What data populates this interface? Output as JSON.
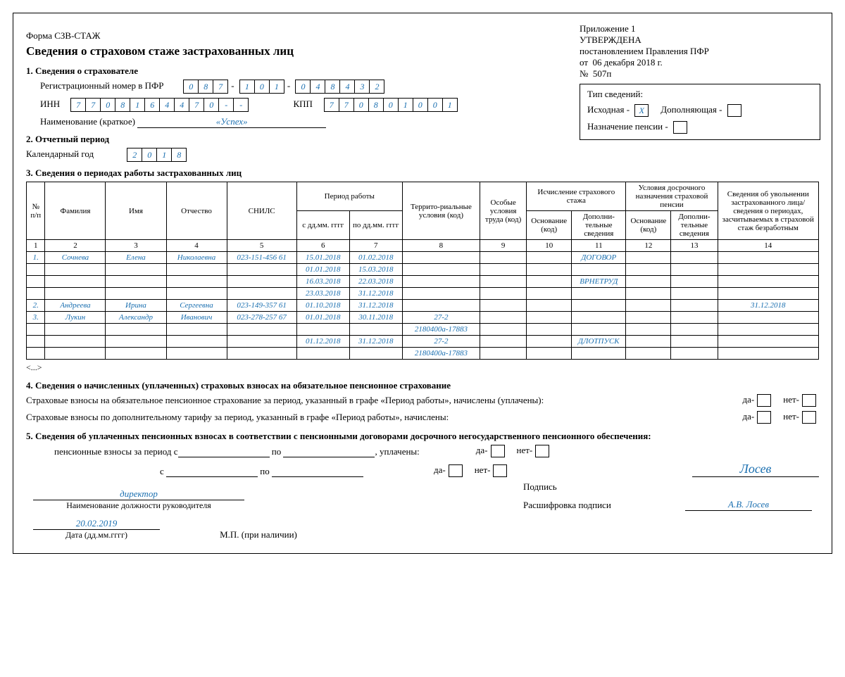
{
  "header": {
    "appendix": "Приложение 1",
    "approved": "УТВЕРЖДЕНА",
    "by": "постановлением Правления ПФР",
    "from_lbl": "от",
    "from_val": "06 декабря 2018 г.",
    "num_lbl": "№",
    "num_val": "507п",
    "form": "Форма СЗВ-СТАЖ",
    "title": "Сведения о страховом стаже застрахованных лиц"
  },
  "types": {
    "title": "Тип сведений:",
    "orig_lbl": "Исходная -",
    "orig_val": "X",
    "supp_lbl": "Дополняющая -",
    "supp_val": "",
    "pension_lbl": "Назначение пенсии -",
    "pension_val": ""
  },
  "s1": {
    "title": "1. Сведения о страхователе",
    "reg_lbl": "Регистрационный номер в ПФР",
    "reg1": [
      "0",
      "8",
      "7"
    ],
    "reg2": [
      "1",
      "0",
      "1"
    ],
    "reg3": [
      "0",
      "4",
      "8",
      "4",
      "3",
      "2"
    ],
    "inn_lbl": "ИНН",
    "inn": [
      "7",
      "7",
      "0",
      "8",
      "1",
      "6",
      "4",
      "4",
      "7",
      "0",
      "-",
      "-"
    ],
    "kpp_lbl": "КПП",
    "kpp": [
      "7",
      "7",
      "0",
      "8",
      "0",
      "1",
      "0",
      "0",
      "1"
    ],
    "name_lbl": "Наименование (краткое)",
    "name_val": "«Успех»"
  },
  "s2": {
    "title": "2. Отчетный период",
    "year_lbl": "Календарный год",
    "year": [
      "2",
      "0",
      "1",
      "8"
    ]
  },
  "s3": {
    "title": "3. Сведения о периодах работы застрахованных лиц",
    "cols": {
      "n": "№ п/п",
      "fam": "Фамилия",
      "name": "Имя",
      "patr": "Отчество",
      "snils": "СНИЛС",
      "period": "Период работы",
      "from": "с дд.мм. гггг",
      "to": "по дд.мм. гггг",
      "terr": "Террито-риальные условия (код)",
      "cond": "Особые условия труда (код)",
      "calc": "Исчисление страхового стажа",
      "base": "Основание (код)",
      "add": "Дополни-тельные сведения",
      "early": "Условия досрочного назначения страховой пенсии",
      "dismiss": "Сведения об увольнении застрахованного лица/сведения о периодах, засчитываемых в страховой стаж безработным"
    },
    "nums": [
      "1",
      "2",
      "3",
      "4",
      "5",
      "6",
      "7",
      "8",
      "9",
      "10",
      "11",
      "12",
      "13",
      "14"
    ],
    "rows": [
      {
        "n": "1.",
        "fam": "Сочнева",
        "name": "Елена",
        "patr": "Николаевна",
        "snils": "023-151-456 61",
        "from": "15.01.2018",
        "to": "01.02.2018",
        "terr": "",
        "cond": "",
        "base": "",
        "add": "ДОГОВОР",
        "ebase": "",
        "eadd": "",
        "dis": ""
      },
      {
        "n": "",
        "fam": "",
        "name": "",
        "patr": "",
        "snils": "",
        "from": "01.01.2018",
        "to": "15.03.2018",
        "terr": "",
        "cond": "",
        "base": "",
        "add": "",
        "ebase": "",
        "eadd": "",
        "dis": ""
      },
      {
        "n": "",
        "fam": "",
        "name": "",
        "patr": "",
        "snils": "",
        "from": "16.03.2018",
        "to": "22.03.2018",
        "terr": "",
        "cond": "",
        "base": "",
        "add": "ВРНЕТРУД",
        "ebase": "",
        "eadd": "",
        "dis": ""
      },
      {
        "n": "",
        "fam": "",
        "name": "",
        "patr": "",
        "snils": "",
        "from": "23.03.2018",
        "to": "31.12.2018",
        "terr": "",
        "cond": "",
        "base": "",
        "add": "",
        "ebase": "",
        "eadd": "",
        "dis": ""
      },
      {
        "n": "2.",
        "fam": "Андреева",
        "name": "Ирина",
        "patr": "Сергеевна",
        "snils": "023-149-357 61",
        "from": "01.10.2018",
        "to": "31.12.2018",
        "terr": "",
        "cond": "",
        "base": "",
        "add": "",
        "ebase": "",
        "eadd": "",
        "dis": "31.12.2018"
      },
      {
        "n": "3.",
        "fam": "Лукин",
        "name": "Александр",
        "patr": "Иванович",
        "snils": "023-278-257 67",
        "from": "01.01.2018",
        "to": "30.11.2018",
        "terr": "27-2",
        "cond": "",
        "base": "",
        "add": "",
        "ebase": "",
        "eadd": "",
        "dis": ""
      },
      {
        "n": "",
        "fam": "",
        "name": "",
        "patr": "",
        "snils": "",
        "from": "",
        "to": "",
        "terr": "2180400а-17883",
        "cond": "",
        "base": "",
        "add": "",
        "ebase": "",
        "eadd": "",
        "dis": ""
      },
      {
        "n": "",
        "fam": "",
        "name": "",
        "patr": "",
        "snils": "",
        "from": "01.12.2018",
        "to": "31.12.2018",
        "terr": "27-2",
        "cond": "",
        "base": "",
        "add": "ДЛОТПУСК",
        "ebase": "",
        "eadd": "",
        "dis": ""
      },
      {
        "n": "",
        "fam": "",
        "name": "",
        "patr": "",
        "snils": "",
        "from": "",
        "to": "",
        "terr": "2180400а-17883",
        "cond": "",
        "base": "",
        "add": "",
        "ebase": "",
        "eadd": "",
        "dis": ""
      }
    ],
    "more": "<...>"
  },
  "s4": {
    "title": "4. Сведения о начисленных (уплаченных) страховых взносах на обязательное пенсионное страхование",
    "line1": "Страховые взносы на обязательное пенсионное страхование за период, указанный в графе «Период работы», начислены (уплачены):",
    "line2": "Страховые взносы по дополнительному тарифу за период, указанный в графе «Период работы», начислены:",
    "yes": "да-",
    "no": "нет-"
  },
  "s5": {
    "title": "5. Сведения об уплаченных пенсионных взносах в соответствии с пенсионными договорами досрочного негосударственного пенсионного обеспечения:",
    "line1a": "пенсионные взносы за период с",
    "line1b": "по",
    "line1c": ", уплачены:",
    "line2a": "с",
    "line2b": "по",
    "yes": "да-",
    "no": "нет-"
  },
  "sign": {
    "pos_val": "директор",
    "pos_lbl": "Наименование должности руководителя",
    "sig_lbl": "Подпись",
    "sig_val": "Лосев",
    "dec_lbl": "Расшифровка подписи",
    "dec_val": "А.В. Лосев",
    "date_val": "20.02.2019",
    "date_lbl": "Дата (дд.мм.гггг)",
    "stamp": "М.П.  (при наличии)"
  }
}
